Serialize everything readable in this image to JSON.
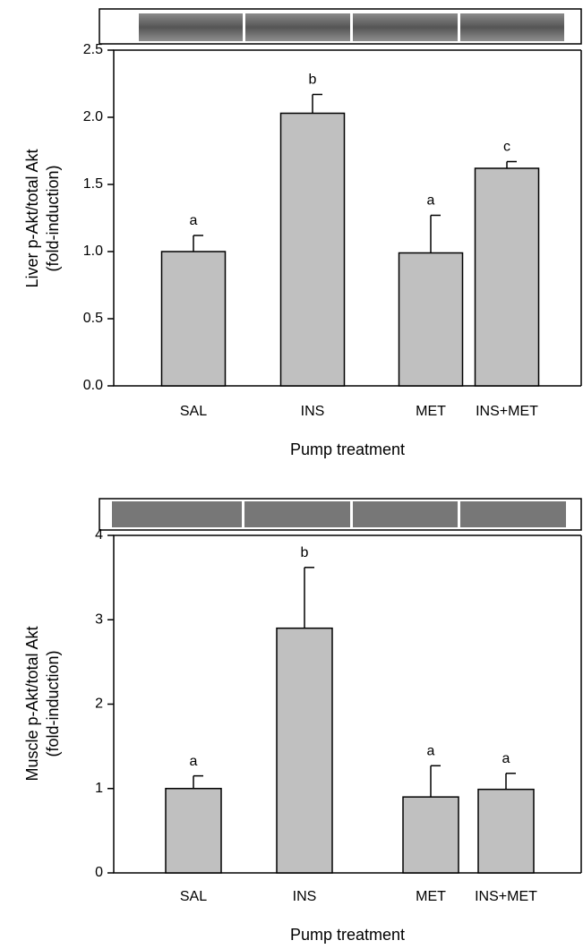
{
  "chart_data": [
    {
      "type": "bar",
      "categories": [
        "SAL",
        "INS",
        "MET",
        "INS+MET"
      ],
      "values": [
        1.0,
        2.03,
        0.99,
        1.62
      ],
      "errors": [
        0.12,
        0.14,
        0.28,
        0.05
      ],
      "annotations": [
        "a",
        "b",
        "a",
        "c"
      ],
      "color": "#c0c0c0",
      "ylim": [
        0,
        2.5
      ],
      "yticks": [
        {
          "value": 0,
          "label": "0.0"
        },
        0.5,
        {
          "value": 1,
          "label": "1.0"
        },
        1.5,
        {
          "value": 2,
          "label": "2.0"
        },
        2.5
      ],
      "ylabel": [
        "Liver p-Akt/total Akt",
        "(fold-induction)"
      ],
      "xlabel": "Pump treatment"
    },
    {
      "type": "bar",
      "categories": [
        "SAL",
        "INS",
        "MET",
        "INS+MET"
      ],
      "values": [
        1.0,
        2.9,
        0.9,
        0.99
      ],
      "errors": [
        0.15,
        0.72,
        0.37,
        0.19
      ],
      "annotations": [
        "a",
        "b",
        "a",
        "a"
      ],
      "color": "#c0c0c0",
      "ylim": [
        0,
        4
      ],
      "yticks": [
        0,
        1,
        2,
        3,
        4
      ],
      "ylabel": [
        "Muscle p-Akt/total Akt",
        "(fold-induction)"
      ],
      "xlabel": "Pump treatment"
    }
  ]
}
